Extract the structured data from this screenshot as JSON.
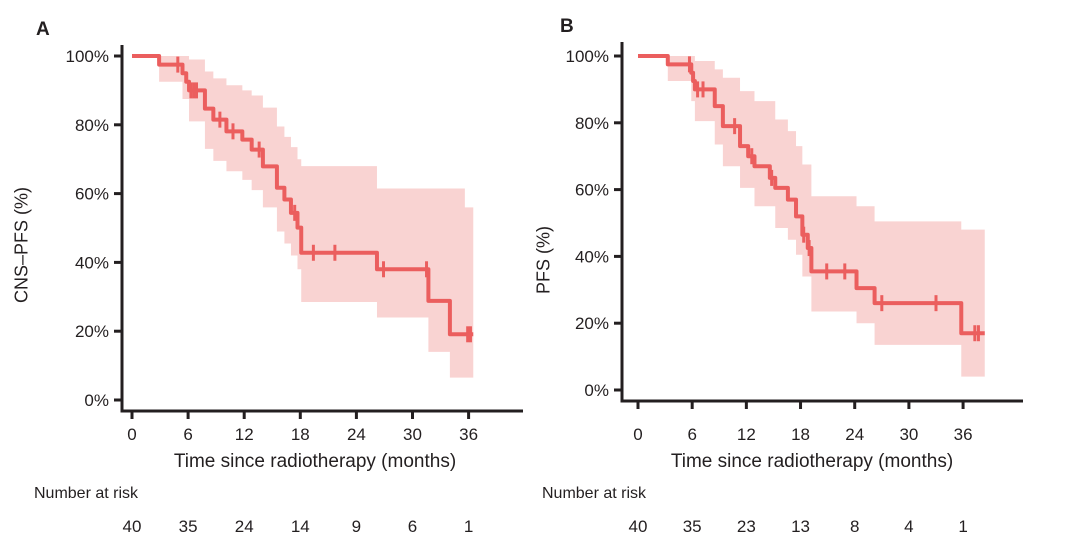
{
  "chart_data": [
    {
      "type": "line",
      "subtype": "kaplan-meier-step",
      "panel_label": "A",
      "ylabel": "CNS–PFS (%)",
      "xlabel": "Time since radiotherapy (months)",
      "x_ticks": [
        0,
        6,
        12,
        18,
        24,
        30,
        36
      ],
      "y_ticks_pct": [
        0,
        20,
        40,
        60,
        80,
        100
      ],
      "y_tick_labels": [
        "0%",
        "20%",
        "40%",
        "60%",
        "80%",
        "100%"
      ],
      "xlim": [
        0,
        42
      ],
      "ylim": [
        0,
        100
      ],
      "grid": false,
      "curve_color": "#EB5E5E",
      "band_color": "#F9D3D2",
      "steps": [
        [
          0,
          100
        ],
        [
          2.9,
          97.5
        ],
        [
          5.4,
          95
        ],
        [
          5.8,
          92.5
        ],
        [
          6.1,
          90
        ],
        [
          7.8,
          84.7
        ],
        [
          8.7,
          81.5
        ],
        [
          10.1,
          78.1
        ],
        [
          11.8,
          75.7
        ],
        [
          12.8,
          72.8
        ],
        [
          14,
          67.9
        ],
        [
          15.5,
          61.7
        ],
        [
          16.3,
          58.3
        ],
        [
          17,
          54.4
        ],
        [
          17.7,
          50.1
        ],
        [
          18.1,
          42.8
        ],
        [
          26.2,
          38
        ],
        [
          31.7,
          28.8
        ],
        [
          34,
          19.1
        ]
      ],
      "curve_end": 36.5,
      "censor_marks": [
        [
          4.9,
          97.5
        ],
        [
          6.3,
          90
        ],
        [
          6.6,
          90
        ],
        [
          6.9,
          90
        ],
        [
          9.4,
          81.5
        ],
        [
          10.8,
          78.1
        ],
        [
          13.6,
          72.8
        ],
        [
          17.4,
          54.4
        ],
        [
          19.4,
          42.8
        ],
        [
          21.7,
          42.8
        ],
        [
          26.9,
          38
        ],
        [
          31.5,
          38
        ],
        [
          35.9,
          19.1
        ],
        [
          36.2,
          19.1
        ]
      ],
      "confidence_band": [
        [
          2.9,
          5.4,
          100,
          92.5
        ],
        [
          5.4,
          6.1,
          100,
          87.5
        ],
        [
          6.1,
          7.8,
          99,
          81
        ],
        [
          7.8,
          8.7,
          95.5,
          73
        ],
        [
          8.7,
          10.1,
          93.5,
          69.5
        ],
        [
          10.1,
          11.8,
          91.5,
          66.5
        ],
        [
          11.8,
          12.8,
          90,
          64
        ],
        [
          12.8,
          14,
          88.5,
          61
        ],
        [
          14,
          15.5,
          85,
          56
        ],
        [
          15.5,
          16.3,
          79.5,
          49
        ],
        [
          16.3,
          17,
          76.5,
          45.5
        ],
        [
          17,
          17.7,
          73.5,
          42
        ],
        [
          17.7,
          18.1,
          70,
          38
        ],
        [
          18.1,
          26.2,
          68,
          28.5
        ],
        [
          26.2,
          31.7,
          61.5,
          24
        ],
        [
          31.7,
          34,
          61.5,
          14
        ],
        [
          34,
          35.6,
          61.5,
          6.5
        ],
        [
          35.6,
          36.5,
          56,
          6.5
        ]
      ],
      "number_at_risk_label": "Number at risk",
      "number_at_risk": {
        "times": [
          0,
          6,
          12,
          18,
          24,
          30,
          36
        ],
        "counts": [
          "40",
          "35",
          "24",
          "14",
          "9",
          "6",
          "1"
        ]
      }
    },
    {
      "type": "line",
      "subtype": "kaplan-meier-step",
      "panel_label": "B",
      "ylabel": "PFS (%)",
      "xlabel": "Time since radiotherapy (months)",
      "x_ticks": [
        0,
        6,
        12,
        18,
        24,
        30,
        36
      ],
      "y_ticks_pct": [
        0,
        20,
        40,
        60,
        80,
        100
      ],
      "y_tick_labels": [
        "0%",
        "20%",
        "40%",
        "60%",
        "80%",
        "100%"
      ],
      "xlim": [
        0,
        42
      ],
      "ylim": [
        0,
        100
      ],
      "grid": false,
      "curve_color": "#EB5E5E",
      "band_color": "#F9D3D2",
      "steps": [
        [
          0,
          100
        ],
        [
          3.3,
          97.5
        ],
        [
          5.9,
          95
        ],
        [
          6.1,
          92.5
        ],
        [
          6.3,
          90
        ],
        [
          8.5,
          85
        ],
        [
          9.4,
          79
        ],
        [
          11.3,
          73
        ],
        [
          12.2,
          70
        ],
        [
          12.9,
          67
        ],
        [
          14.6,
          63.5
        ],
        [
          15.2,
          60.5
        ],
        [
          16.6,
          57
        ],
        [
          17.5,
          52
        ],
        [
          18.2,
          46.5
        ],
        [
          18.8,
          42.5
        ],
        [
          19.2,
          35.5
        ],
        [
          24.2,
          30.5
        ],
        [
          26.2,
          26
        ],
        [
          35.8,
          17
        ]
      ],
      "curve_end": 38.4,
      "censor_marks": [
        [
          5.7,
          97.5
        ],
        [
          6.6,
          90
        ],
        [
          7.2,
          90
        ],
        [
          10.7,
          79
        ],
        [
          12.6,
          70
        ],
        [
          14.8,
          63.5
        ],
        [
          18.35,
          46.5
        ],
        [
          18.95,
          42.5
        ],
        [
          20.9,
          35.5
        ],
        [
          22.9,
          35.5
        ],
        [
          27,
          26
        ],
        [
          33,
          26
        ],
        [
          37.3,
          17
        ],
        [
          37.7,
          17
        ]
      ],
      "confidence_band": [
        [
          3.3,
          5.9,
          100,
          92.5
        ],
        [
          5.9,
          6.3,
          100,
          86.5
        ],
        [
          6.3,
          8.5,
          98.5,
          80.5
        ],
        [
          8.5,
          9.4,
          96,
          73.5
        ],
        [
          9.4,
          11.3,
          93.5,
          67
        ],
        [
          11.3,
          12.9,
          89.5,
          60.5
        ],
        [
          12.9,
          15.2,
          86.5,
          55
        ],
        [
          15.2,
          16.6,
          81,
          48.5
        ],
        [
          16.6,
          17.5,
          77.5,
          45
        ],
        [
          17.5,
          18.2,
          73,
          40.5
        ],
        [
          18.2,
          19.2,
          67.5,
          34
        ],
        [
          19.2,
          24.2,
          58,
          23.5
        ],
        [
          24.2,
          26.2,
          55,
          20
        ],
        [
          26.2,
          35.8,
          50.5,
          13.5
        ],
        [
          35.8,
          38.4,
          48,
          4
        ]
      ],
      "number_at_risk_label": "Number at risk",
      "number_at_risk": {
        "times": [
          0,
          6,
          12,
          18,
          24,
          30,
          36
        ],
        "counts": [
          "40",
          "35",
          "23",
          "13",
          "8",
          "4",
          "1"
        ]
      }
    }
  ]
}
